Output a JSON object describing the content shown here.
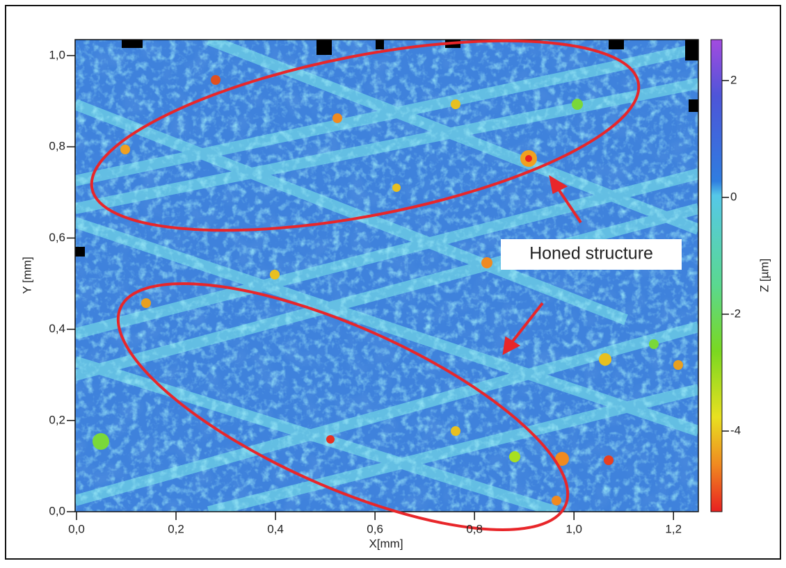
{
  "chart_data": {
    "type": "surface-map",
    "xlabel": "X[mm]",
    "ylabel": "Y [mm]",
    "colorbar_label": "Z [µm]",
    "annotation": "Honed structure",
    "xlim": [
      0,
      1.25
    ],
    "xticks": [
      {
        "value": 0,
        "label": "0,0"
      },
      {
        "value": 0.2,
        "label": "0,2"
      },
      {
        "value": 0.4,
        "label": "0,4"
      },
      {
        "value": 0.6,
        "label": "0,6"
      },
      {
        "value": 0.8,
        "label": "0,8"
      },
      {
        "value": 1.0,
        "label": "1,0"
      },
      {
        "value": 1.2,
        "label": "1,2"
      }
    ],
    "ylim": [
      0,
      1.035
    ],
    "yticks": [
      {
        "value": 0,
        "label": "0,0"
      },
      {
        "value": 0.2,
        "label": "0,2"
      },
      {
        "value": 0.4,
        "label": "0,4"
      },
      {
        "value": 0.6,
        "label": "0,6"
      },
      {
        "value": 0.8,
        "label": "0,8"
      },
      {
        "value": 1.0,
        "label": "1,0"
      }
    ],
    "zlim": [
      -5.38,
      2.7
    ],
    "zticks": [
      2,
      0,
      -2,
      -4
    ]
  }
}
